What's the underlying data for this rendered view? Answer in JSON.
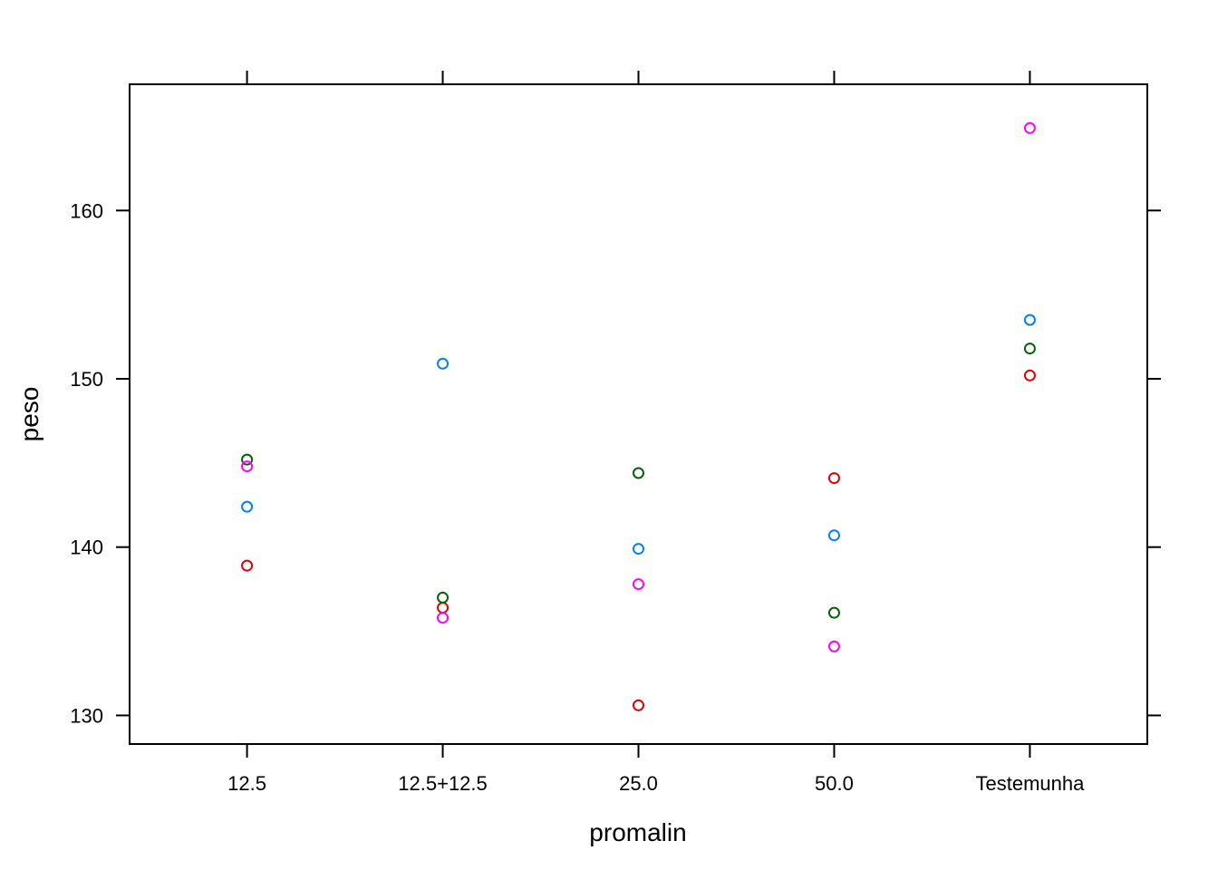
{
  "chart_data": {
    "type": "scatter",
    "xlabel": "promalin",
    "ylabel": "peso",
    "categories": [
      "12.5",
      "12.5+12.5",
      "25.0",
      "50.0",
      "Testemunha"
    ],
    "yticks": [
      130,
      140,
      150,
      160
    ],
    "ylim": [
      128.3,
      167.5
    ],
    "grid": false,
    "series": [
      {
        "color": "#e00000",
        "values": [
          138.9,
          136.4,
          130.6,
          144.1,
          150.2
        ]
      },
      {
        "color": "#006400",
        "values": [
          145.2,
          137.0,
          144.4,
          136.1,
          151.8
        ]
      },
      {
        "color": "#0080ff",
        "values": [
          142.4,
          150.9,
          139.9,
          140.7,
          153.5
        ]
      },
      {
        "color": "#ff00ff",
        "values": [
          144.8,
          135.8,
          137.8,
          134.1,
          164.9
        ]
      }
    ]
  }
}
